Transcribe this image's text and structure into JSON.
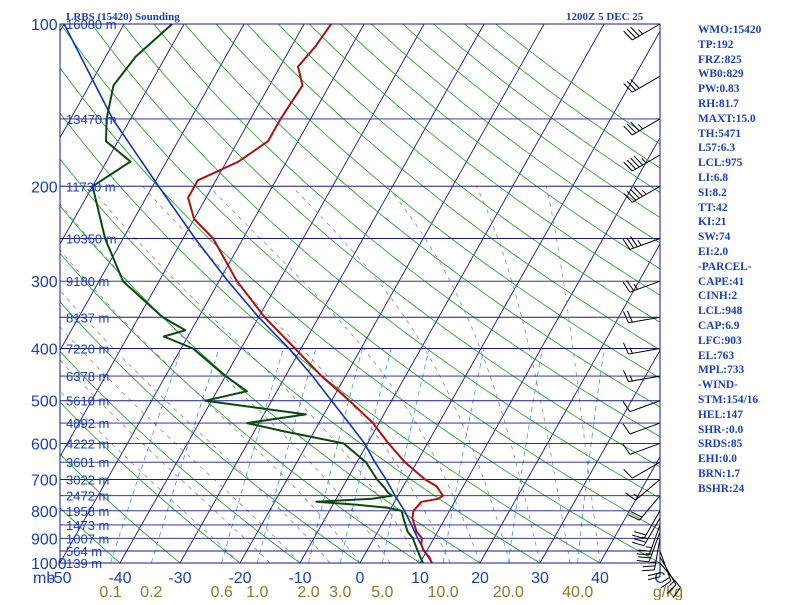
{
  "header": {
    "station": "LRBS (15420) Sounding",
    "valid_time": "1200Z  5 DEC 25"
  },
  "indices": [
    "WMO:15420",
    "TP:192",
    "FRZ:825",
    "WB0:829",
    "PW:0.83",
    "RH:81.7",
    "MAXT:15.0",
    "TH:5471",
    "L57:6.3",
    "LCL:975",
    "LI:6.8",
    "SI:8.2",
    "TT:42",
    "KI:21",
    "SW:74",
    "EI:2.0",
    "-PARCEL-",
    "CAPE:41",
    "CINH:2",
    "LCL:948",
    "CAP:6.9",
    "LFC:903",
    "EL:763",
    "MPL:733",
    "-WIND-",
    "STM:154/16",
    "HEL:147",
    "SHR-:0.0",
    "SRDS:85",
    "EHI:0.0",
    "BRN:1.7",
    "BSHR:24"
  ],
  "colors": {
    "isobar": "#1a1a8c",
    "isotherm": "#1a1a8c",
    "dry_adiabat": "#18a018",
    "moist_adiabat": "#8a8a8a",
    "mixing_ratio": "#3a9ad8",
    "temperature": "#b01010",
    "dewpoint": "#0a4a0a",
    "parcel": "#1030c0",
    "wind": "#000000",
    "text": "#1a3fbf",
    "mixing_label": "#8a7a2a"
  },
  "chart_data": {
    "type": "skew-t",
    "title": "LRBS (15420) Sounding",
    "pressure_unit": "mb",
    "mixing_ratio_unit": "g/kg",
    "pressure_range": [
      1000,
      100
    ],
    "temperature_range": [
      -50,
      50
    ],
    "pressure_labels": [
      100,
      200,
      300,
      400,
      500,
      600,
      700,
      800,
      900,
      1000
    ],
    "temperature_ticks": [
      -50,
      -40,
      -30,
      -20,
      -10,
      0,
      10,
      20,
      30,
      40
    ],
    "mixing_ratio_labels": [
      "0.1",
      "0.2",
      "0.6",
      "1.0",
      "2.0",
      "3.0",
      "5.0",
      "10.0",
      "20.0",
      "40.0"
    ],
    "mixing_ratio_values": [
      0.1,
      0.2,
      0.6,
      1.0,
      2.0,
      3.0,
      5.0,
      10.0,
      20.0,
      40.0
    ],
    "height_labels": [
      {
        "p": 1000,
        "label": "139 m"
      },
      {
        "p": 950,
        "label": "564 m"
      },
      {
        "p": 900,
        "label": "1007 m"
      },
      {
        "p": 850,
        "label": "1473 m"
      },
      {
        "p": 800,
        "label": "1958 m"
      },
      {
        "p": 750,
        "label": "2472 m"
      },
      {
        "p": 700,
        "label": "3022 m"
      },
      {
        "p": 650,
        "label": "3601 m"
      },
      {
        "p": 600,
        "label": "4222 m"
      },
      {
        "p": 550,
        "label": "4892 m"
      },
      {
        "p": 500,
        "label": "5610 m"
      },
      {
        "p": 450,
        "label": "6378 m"
      },
      {
        "p": 400,
        "label": "7220 m"
      },
      {
        "p": 350,
        "label": "8137 m"
      },
      {
        "p": 300,
        "label": "9180 m"
      },
      {
        "p": 250,
        "label": "10350 m"
      },
      {
        "p": 200,
        "label": "11730 m"
      },
      {
        "p": 150,
        "label": "13470 m"
      },
      {
        "p": 100,
        "label": "16080 m"
      }
    ],
    "temperature_profile": [
      {
        "p": 1000,
        "t": 12.0
      },
      {
        "p": 975,
        "t": 11.0
      },
      {
        "p": 950,
        "t": 9.5
      },
      {
        "p": 925,
        "t": 8.5
      },
      {
        "p": 900,
        "t": 8.0
      },
      {
        "p": 875,
        "t": 6.5
      },
      {
        "p": 850,
        "t": 5.5
      },
      {
        "p": 825,
        "t": 4.5
      },
      {
        "p": 800,
        "t": 4.0
      },
      {
        "p": 770,
        "t": 4.5
      },
      {
        "p": 760,
        "t": 7.0
      },
      {
        "p": 750,
        "t": 7.5
      },
      {
        "p": 720,
        "t": 5.5
      },
      {
        "p": 700,
        "t": 3.0
      },
      {
        "p": 650,
        "t": -2.0
      },
      {
        "p": 600,
        "t": -6.5
      },
      {
        "p": 550,
        "t": -11.0
      },
      {
        "p": 500,
        "t": -17.0
      },
      {
        "p": 450,
        "t": -24.0
      },
      {
        "p": 400,
        "t": -31.0
      },
      {
        "p": 350,
        "t": -39.0
      },
      {
        "p": 300,
        "t": -47.0
      },
      {
        "p": 250,
        "t": -55.0
      },
      {
        "p": 230,
        "t": -60.0
      },
      {
        "p": 210,
        "t": -63.0
      },
      {
        "p": 195,
        "t": -63.0
      },
      {
        "p": 180,
        "t": -58.0
      },
      {
        "p": 165,
        "t": -55.0
      },
      {
        "p": 150,
        "t": -55.0
      },
      {
        "p": 130,
        "t": -54.5
      },
      {
        "p": 120,
        "t": -57.0
      },
      {
        "p": 110,
        "t": -56.0
      },
      {
        "p": 100,
        "t": -55.5
      }
    ],
    "dewpoint_profile": [
      {
        "p": 1000,
        "t": 10.5
      },
      {
        "p": 975,
        "t": 9.5
      },
      {
        "p": 950,
        "t": 8.5
      },
      {
        "p": 925,
        "t": 7.5
      },
      {
        "p": 900,
        "t": 6.5
      },
      {
        "p": 875,
        "t": 5.0
      },
      {
        "p": 850,
        "t": 4.0
      },
      {
        "p": 825,
        "t": 3.0
      },
      {
        "p": 800,
        "t": 2.0
      },
      {
        "p": 790,
        "t": -0.5
      },
      {
        "p": 780,
        "t": -6.0
      },
      {
        "p": 770,
        "t": -13.0
      },
      {
        "p": 760,
        "t": -4.0
      },
      {
        "p": 750,
        "t": -1.0
      },
      {
        "p": 740,
        "t": -2.0
      },
      {
        "p": 725,
        "t": -3.0
      },
      {
        "p": 700,
        "t": -5.0
      },
      {
        "p": 650,
        "t": -8.5
      },
      {
        "p": 600,
        "t": -14.0
      },
      {
        "p": 570,
        "t": -25.0
      },
      {
        "p": 550,
        "t": -32.0
      },
      {
        "p": 530,
        "t": -23.0
      },
      {
        "p": 500,
        "t": -41.0
      },
      {
        "p": 480,
        "t": -35.0
      },
      {
        "p": 450,
        "t": -40.0
      },
      {
        "p": 400,
        "t": -48.0
      },
      {
        "p": 380,
        "t": -54.0
      },
      {
        "p": 370,
        "t": -51.0
      },
      {
        "p": 350,
        "t": -56.0
      },
      {
        "p": 300,
        "t": -66.0
      },
      {
        "p": 250,
        "t": -73.0
      },
      {
        "p": 200,
        "t": -80.0
      },
      {
        "p": 180,
        "t": -76.0
      },
      {
        "p": 165,
        "t": -82.0
      },
      {
        "p": 150,
        "t": -84.0
      },
      {
        "p": 130,
        "t": -86.0
      },
      {
        "p": 115,
        "t": -85.0
      },
      {
        "p": 100,
        "t": -82.0
      }
    ],
    "parcel_profile": [
      {
        "p": 1000,
        "t": 12.0
      },
      {
        "p": 948,
        "t": 9.5
      },
      {
        "p": 900,
        "t": 7.3
      },
      {
        "p": 850,
        "t": 5.0
      },
      {
        "p": 800,
        "t": 2.5
      },
      {
        "p": 750,
        "t": -0.5
      },
      {
        "p": 700,
        "t": -3.5
      },
      {
        "p": 650,
        "t": -7.0
      },
      {
        "p": 600,
        "t": -10.5
      },
      {
        "p": 550,
        "t": -15.0
      },
      {
        "p": 500,
        "t": -20.0
      },
      {
        "p": 450,
        "t": -25.5
      },
      {
        "p": 400,
        "t": -32.0
      },
      {
        "p": 350,
        "t": -40.0
      },
      {
        "p": 300,
        "t": -48.5
      },
      {
        "p": 250,
        "t": -58.0
      },
      {
        "p": 200,
        "t": -69.0
      },
      {
        "p": 150,
        "t": -83.0
      },
      {
        "p": 100,
        "t": -100.0
      }
    ],
    "wind_profile": [
      {
        "p": 1000,
        "dir": 140,
        "kt": 10
      },
      {
        "p": 975,
        "dir": 150,
        "kt": 15
      },
      {
        "p": 950,
        "dir": 160,
        "kt": 15
      },
      {
        "p": 925,
        "dir": 180,
        "kt": 20
      },
      {
        "p": 900,
        "dir": 190,
        "kt": 25
      },
      {
        "p": 875,
        "dir": 200,
        "kt": 25
      },
      {
        "p": 850,
        "dir": 200,
        "kt": 25
      },
      {
        "p": 825,
        "dir": 210,
        "kt": 25
      },
      {
        "p": 800,
        "dir": 210,
        "kt": 20
      },
      {
        "p": 750,
        "dir": 220,
        "kt": 20
      },
      {
        "p": 700,
        "dir": 230,
        "kt": 15
      },
      {
        "p": 650,
        "dir": 240,
        "kt": 10
      },
      {
        "p": 600,
        "dir": 250,
        "kt": 10
      },
      {
        "p": 550,
        "dir": 250,
        "kt": 10
      },
      {
        "p": 500,
        "dir": 250,
        "kt": 10
      },
      {
        "p": 450,
        "dir": 260,
        "kt": 15
      },
      {
        "p": 400,
        "dir": 260,
        "kt": 15
      },
      {
        "p": 350,
        "dir": 260,
        "kt": 20
      },
      {
        "p": 300,
        "dir": 250,
        "kt": 25
      },
      {
        "p": 250,
        "dir": 250,
        "kt": 35
      },
      {
        "p": 200,
        "dir": 240,
        "kt": 45
      },
      {
        "p": 175,
        "dir": 240,
        "kt": 45
      },
      {
        "p": 150,
        "dir": 240,
        "kt": 35
      },
      {
        "p": 125,
        "dir": 240,
        "kt": 30
      },
      {
        "p": 100,
        "dir": 240,
        "kt": 35
      }
    ]
  }
}
